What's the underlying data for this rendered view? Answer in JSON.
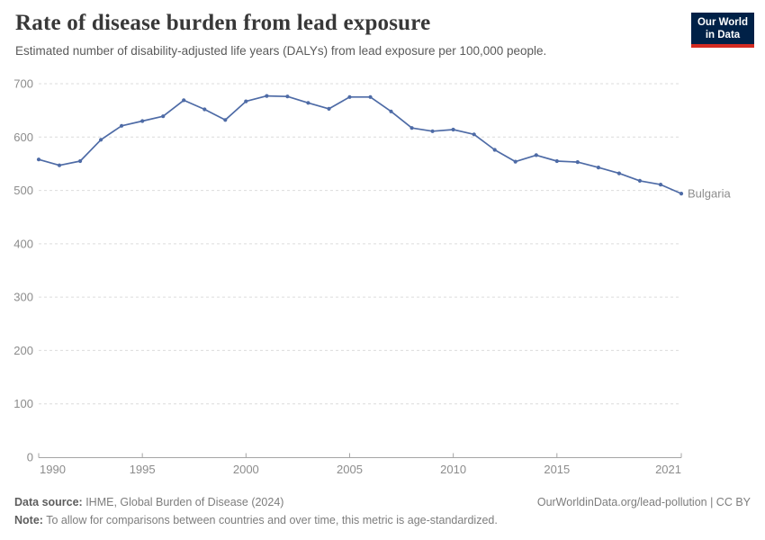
{
  "header": {
    "title": "Rate of disease burden from lead exposure",
    "subtitle": "Estimated number of disability-adjusted life years (DALYs) from lead exposure per 100,000 people.",
    "logo": {
      "line1": "Our World",
      "line2": "in Data",
      "bg_color": "#002147",
      "bar_color": "#d42b21"
    }
  },
  "chart_data": {
    "type": "line",
    "title": "Rate of disease burden from lead exposure",
    "xlabel": "",
    "ylabel": "",
    "xlim": [
      1990,
      2021
    ],
    "ylim": [
      0,
      700
    ],
    "x_ticks": [
      1990,
      1995,
      2000,
      2005,
      2010,
      2015,
      2021
    ],
    "y_ticks": [
      0,
      100,
      200,
      300,
      400,
      500,
      600,
      700
    ],
    "grid": "horizontal-dashed",
    "legend_position": "end-of-line-label",
    "series": [
      {
        "name": "Bulgaria",
        "color": "#4e6ba6",
        "x": [
          1990,
          1991,
          1992,
          1993,
          1994,
          1995,
          1996,
          1997,
          1998,
          1999,
          2000,
          2001,
          2002,
          2003,
          2004,
          2005,
          2006,
          2007,
          2008,
          2009,
          2010,
          2011,
          2012,
          2013,
          2014,
          2015,
          2016,
          2017,
          2018,
          2019,
          2020,
          2021
        ],
        "values": [
          558,
          547,
          555,
          595,
          621,
          630,
          639,
          669,
          652,
          632,
          667,
          677,
          676,
          664,
          653,
          675,
          675,
          648,
          617,
          611,
          614,
          605,
          576,
          554,
          566,
          555,
          553,
          543,
          532,
          518,
          511,
          494
        ]
      }
    ],
    "colors": {
      "gridline": "#dcdcdc",
      "axis": "#a5a5a5",
      "tick_label": "#8c8c8c"
    }
  },
  "footer": {
    "source_label": "Data source:",
    "source_text": " IHME, Global Burden of Disease (2024)",
    "link": "OurWorldinData.org/lead-pollution | CC BY",
    "note_label": "Note:",
    "note_text": " To allow for comparisons between countries and over time, this metric is age-standardized."
  }
}
